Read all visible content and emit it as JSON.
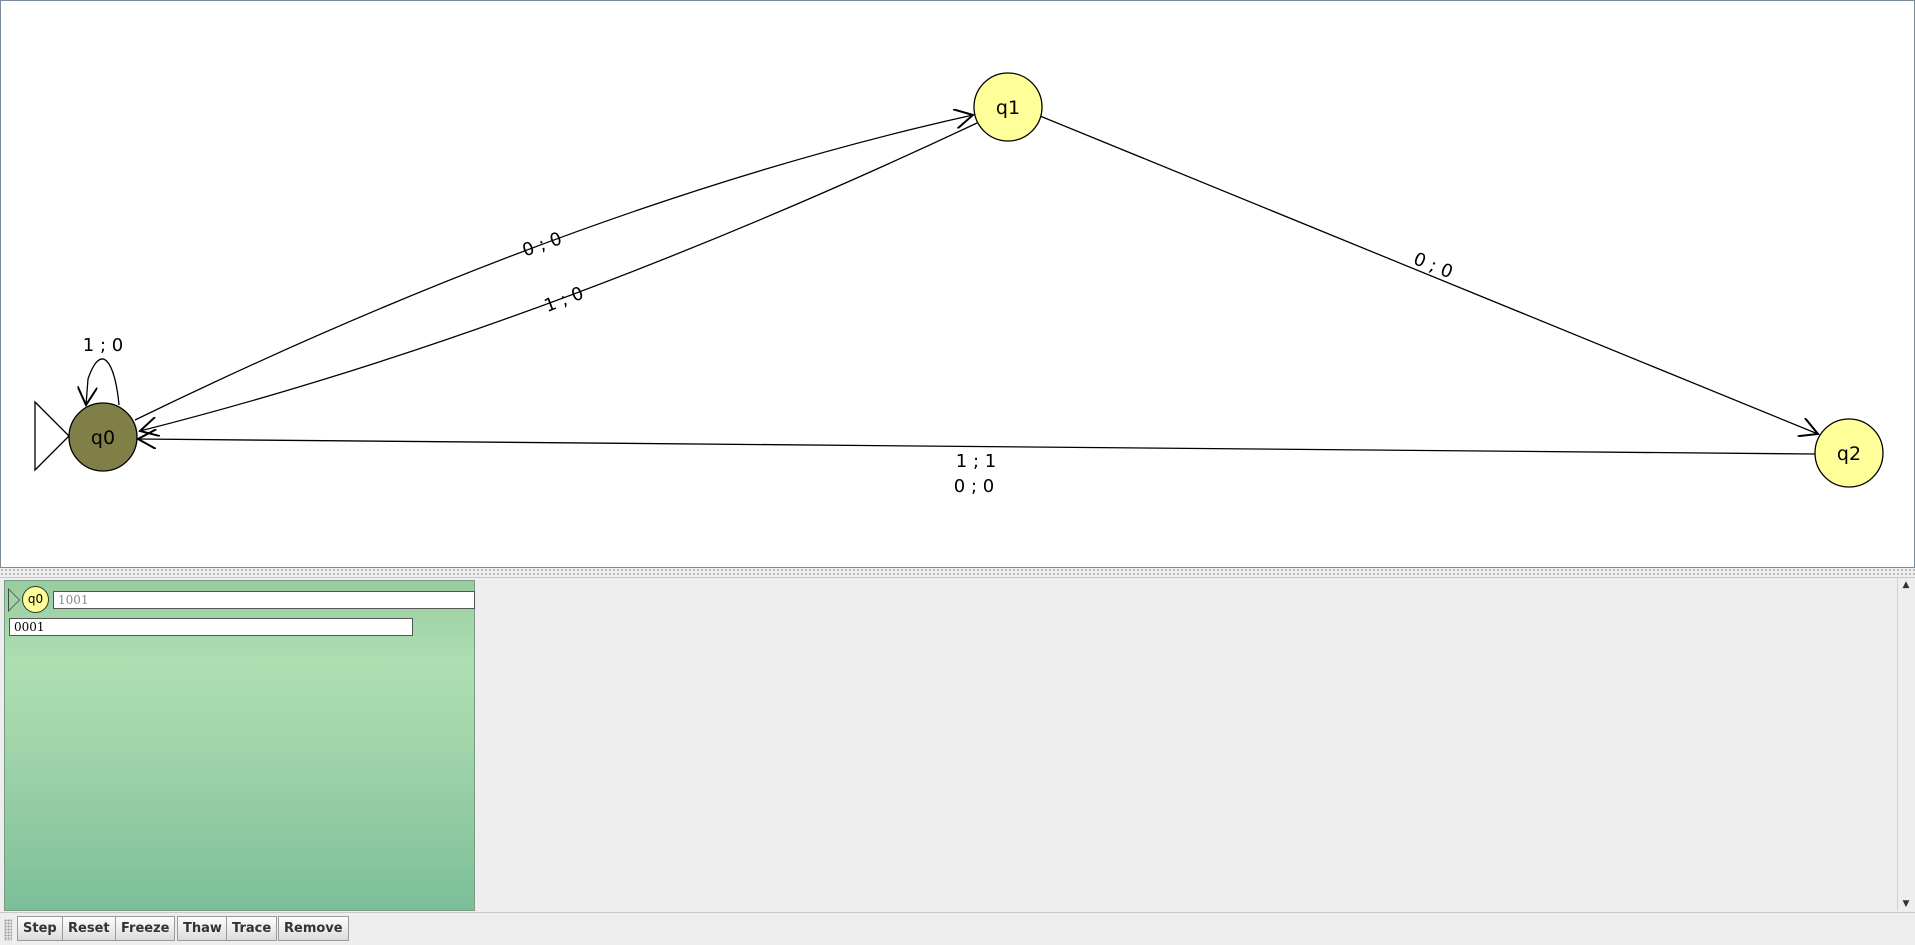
{
  "automaton": {
    "states": [
      {
        "id": "q0",
        "label": "q0",
        "initial": true,
        "active": true
      },
      {
        "id": "q1",
        "label": "q1",
        "initial": false,
        "active": false
      },
      {
        "id": "q2",
        "label": "q2",
        "initial": false,
        "active": false
      }
    ],
    "transitions": [
      {
        "from": "q0",
        "to": "q0",
        "label": "1 ; 0"
      },
      {
        "from": "q0",
        "to": "q1",
        "label": "0 ; 0"
      },
      {
        "from": "q1",
        "to": "q0",
        "label": "1 ; 0"
      },
      {
        "from": "q1",
        "to": "q2",
        "label": "0 ; 0"
      },
      {
        "from": "q2",
        "to": "q0",
        "labels": [
          "1 ; 1",
          "0 ; 0"
        ]
      }
    ]
  },
  "colors": {
    "state_fill": "#ffff99",
    "active_state_fill": "#7f7f47",
    "config_panel_top": "#98cc9e",
    "config_panel_bottom": "#7bbf98"
  },
  "simulation": {
    "configuration": {
      "state": "q0",
      "remaining_input": "1001",
      "output": "0001"
    }
  },
  "toolbar": {
    "buttons": [
      "Step",
      "Reset",
      "Freeze",
      "Thaw",
      "Trace",
      "Remove"
    ]
  },
  "icons": {
    "scroll_up": "arrow-up-icon",
    "scroll_down": "arrow-down-icon"
  }
}
